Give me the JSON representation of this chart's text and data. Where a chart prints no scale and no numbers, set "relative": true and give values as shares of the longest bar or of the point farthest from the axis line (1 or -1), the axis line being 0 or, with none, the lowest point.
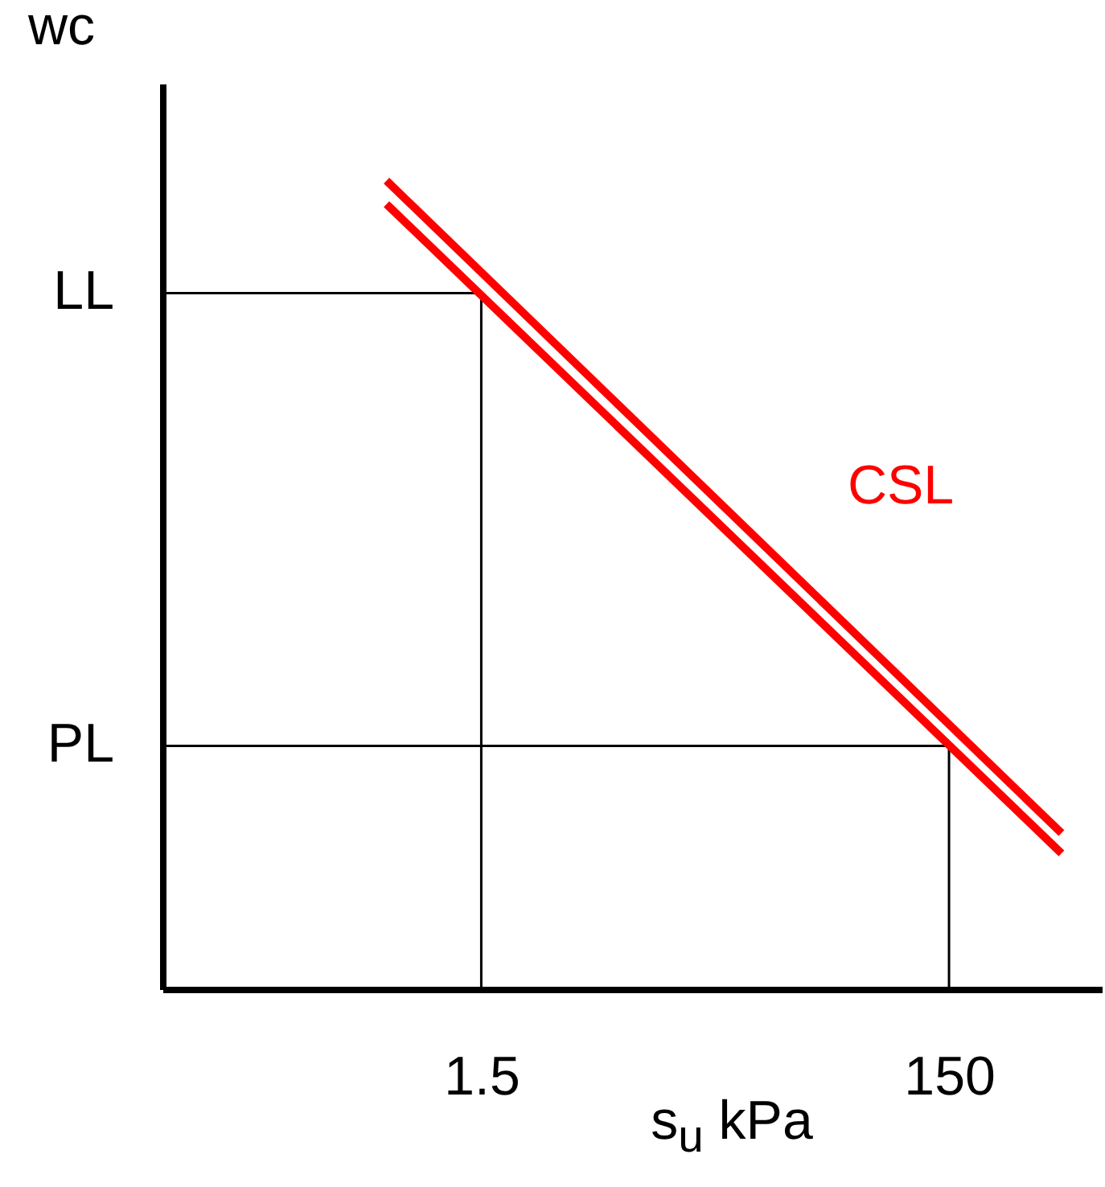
{
  "chart_data": {
    "type": "line",
    "ylabel": "wc",
    "xlabel": "s$_{u}$ kPa",
    "log": "x",
    "relative": true,
    "xlim": [
      0.065,
      675
    ],
    "xticks": [
      1.5,
      150
    ],
    "series": [
      {
        "color": "#000000",
        "x": [
          0.065,
          1.5,
          1.5
        ],
        "values": [
          0.861,
          0.861,
          0
        ]
      },
      {
        "color": "#000000",
        "x": [
          0.065,
          150,
          150
        ],
        "values": [
          0.301,
          0.301,
          0
        ]
      },
      {
        "color": "#ff0000",
        "x": [
          0.59,
          454
        ],
        "values": [
          1,
          0.193
        ]
      },
      {
        "color": "#ff0000",
        "x": [
          0.59,
          454
        ],
        "values": [
          0.971,
          0.168
        ]
      }
    ],
    "annotations": [
      {
        "text": "LL",
        "x": 0.065,
        "y": 0.861
      },
      {
        "text": "PL",
        "x": 0.065,
        "y": 0.301
      },
      "CSL"
    ],
    "grid": false
  }
}
